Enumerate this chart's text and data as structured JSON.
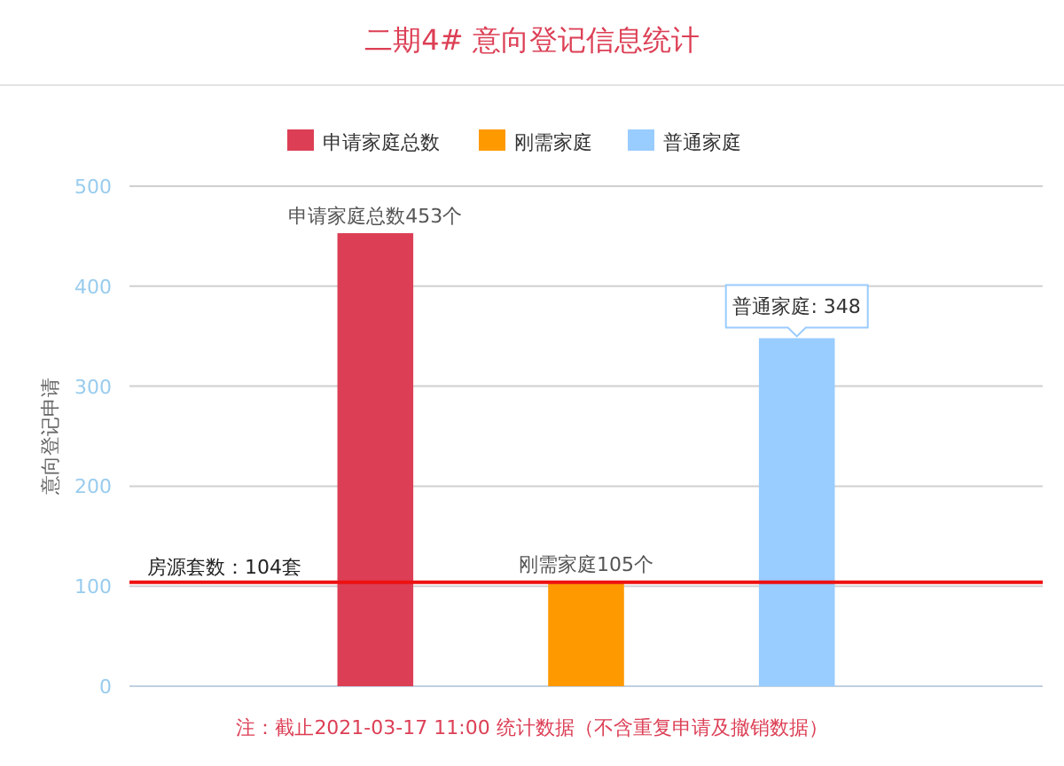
{
  "chart_data": {
    "type": "bar",
    "title": "二期4# 意向登记信息统计",
    "ylabel": "意向登记申请",
    "categories": [
      null
    ],
    "series": [
      {
        "name": "申请家庭总数",
        "color": "#dc3f55",
        "values": [
          453
        ],
        "value_labels": [
          "申请家庭总数453个"
        ]
      },
      {
        "name": "刚需家庭",
        "color": "#ff9900",
        "values": [
          105
        ],
        "value_labels": [
          "刚需家庭105个"
        ]
      },
      {
        "name": "普通家庭",
        "color": "#99ccff",
        "values": [
          348
        ],
        "value_labels": [
          null
        ]
      }
    ],
    "ylim": [
      0,
      500
    ],
    "yticks": [
      0,
      100,
      200,
      300,
      400,
      500
    ],
    "grid": "y",
    "legend": "top",
    "ref_lines": [
      {
        "axis": "y",
        "value": 104,
        "label": "房源套数：104套",
        "color": "#ee1111"
      }
    ],
    "annotations": [
      {
        "text": "普通家庭: 348",
        "y": 348
      },
      "注：截止2021-03-17 11:00 统计数据（不含重复申请及撤销数据）"
    ]
  }
}
